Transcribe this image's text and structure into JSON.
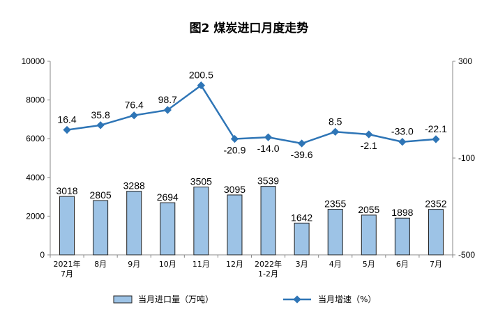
{
  "chart_data": {
    "type": "bar",
    "title": "图2  煤炭进口月度走势",
    "categories": [
      "2021年7月",
      "8月",
      "9月",
      "10月",
      "11月",
      "12月",
      "2022年1-2月",
      "3月",
      "4月",
      "5月",
      "6月",
      "7月"
    ],
    "category_lines": [
      [
        "2021年",
        "7月"
      ],
      [
        "8月"
      ],
      [
        "9月"
      ],
      [
        "10月"
      ],
      [
        "11月"
      ],
      [
        "12月"
      ],
      [
        "2022年",
        "1-2月"
      ],
      [
        "3月"
      ],
      [
        "4月"
      ],
      [
        "5月"
      ],
      [
        "6月"
      ],
      [
        "7月"
      ]
    ],
    "series": [
      {
        "name": "当月进口量（万吨）",
        "type": "bar",
        "axis": "left",
        "values": [
          3018,
          2805,
          3288,
          2694,
          3505,
          3095,
          3539,
          1642,
          2355,
          2055,
          1898,
          2352
        ],
        "labels": [
          "3018",
          "2805",
          "3288",
          "2694",
          "3505",
          "3095",
          "3539",
          "1642",
          "2355",
          "2055",
          "1898",
          "2352"
        ]
      },
      {
        "name": "当月增速（%）",
        "type": "line",
        "axis": "right",
        "values": [
          16.4,
          35.8,
          76.4,
          98.7,
          200.5,
          -20.9,
          -14.0,
          -39.6,
          8.5,
          -2.1,
          -33.0,
          -22.1
        ],
        "labels": [
          "16.4",
          "35.8",
          "76.4",
          "98.7",
          "200.5",
          "-20.9",
          "-14.0",
          "-39.6",
          "8.5",
          "-2.1",
          "-33.0",
          "-22.1"
        ]
      }
    ],
    "y_left": {
      "ylim": [
        0,
        10000
      ],
      "ticks": [
        "0",
        "2000",
        "4000",
        "6000",
        "8000",
        "10000"
      ]
    },
    "y_right": {
      "ylim": [
        -500,
        300
      ],
      "ticks": [
        "-500",
        "-100",
        "300"
      ]
    },
    "grid": false,
    "legend_position": "bottom",
    "colors": {
      "bar_fill": "#9DC3E6",
      "bar_stroke": "#1F1F1F",
      "line": "#2E75B6",
      "axis": "#888888"
    }
  }
}
